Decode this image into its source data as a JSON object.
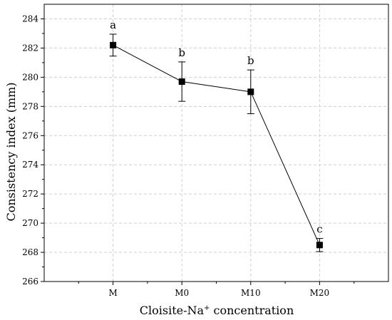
{
  "chart_data": {
    "type": "line",
    "categories": [
      "M",
      "M0",
      "M10",
      "M20"
    ],
    "series": [
      {
        "values": [
          282.2,
          279.7,
          279.0,
          268.5
        ],
        "error": [
          0.75,
          1.35,
          1.5,
          0.45
        ],
        "labels": [
          "a",
          "b",
          "b",
          "c"
        ],
        "marker": "square",
        "color": "#000000"
      }
    ],
    "xlabel_prefix": "Cloisite-Na",
    "xlabel_sup": "+",
    "xlabel_suffix": " concentration",
    "ylabel": "Consistency index (mm)",
    "ylim": [
      266,
      285
    ],
    "yticks": [
      266,
      268,
      270,
      272,
      274,
      276,
      278,
      280,
      282,
      284
    ],
    "grid": true,
    "legend": "none"
  }
}
